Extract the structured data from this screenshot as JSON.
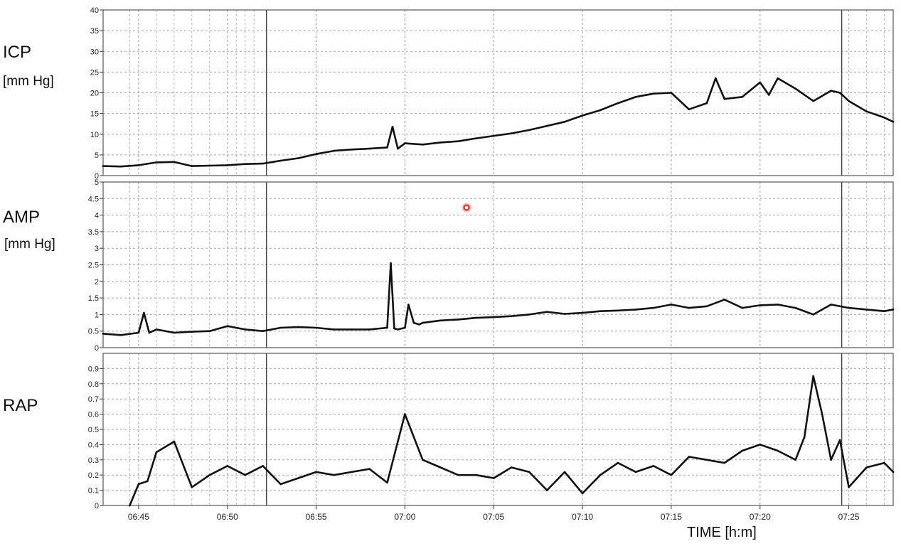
{
  "labels": {
    "icp_name": "ICP",
    "icp_unit": "[mm Hg]",
    "amp_name": "AMP",
    "amp_unit": "[mm Hg]",
    "rap_name": "RAP",
    "x_axis": "TIME [h:m]"
  },
  "chart_data": [
    {
      "type": "line",
      "title": "",
      "ylabel": "ICP [mm Hg]",
      "ylim": [
        0,
        40
      ],
      "yticks": [
        "0",
        "5",
        "10",
        "15",
        "20",
        "25",
        "30",
        "35",
        "40"
      ],
      "xlim": [
        "06:43",
        "07:27.5"
      ],
      "grid": true,
      "x": [
        "06:43",
        "06:44",
        "06:45",
        "06:46",
        "06:47",
        "06:48",
        "06:49",
        "06:50",
        "06:51",
        "06:52",
        "06:53",
        "06:54",
        "06:55",
        "06:56",
        "06:57",
        "06:58",
        "06:59",
        "06:59.3",
        "06:59.6",
        "07:00",
        "07:01",
        "07:02",
        "07:03",
        "07:04",
        "07:05",
        "07:06",
        "07:07",
        "07:08",
        "07:09",
        "07:10",
        "07:11",
        "07:12",
        "07:13",
        "07:14",
        "07:15",
        "07:16",
        "07:17",
        "07:17.5",
        "07:18",
        "07:19",
        "07:20",
        "07:20.5",
        "07:21",
        "07:22",
        "07:23",
        "07:24",
        "07:24.5",
        "07:25",
        "07:26",
        "07:27",
        "07:27.5"
      ],
      "series": [
        {
          "values": [
            2.3,
            2.2,
            2.5,
            3.2,
            3.3,
            2.3,
            2.4,
            2.5,
            2.8,
            2.9,
            3.6,
            4.2,
            5.2,
            6.0,
            6.3,
            6.5,
            6.8,
            11.8,
            6.5,
            7.8,
            7.5,
            8.0,
            8.3,
            9.0,
            9.6,
            10.2,
            11.0,
            12.0,
            13.0,
            14.5,
            15.8,
            17.5,
            19.0,
            19.8,
            20.0,
            16.0,
            17.5,
            23.5,
            18.5,
            19.0,
            22.5,
            19.5,
            23.5,
            21.0,
            18.0,
            20.5,
            20.0,
            18.0,
            15.5,
            14.0,
            13.0
          ]
        }
      ]
    },
    {
      "type": "line",
      "title": "",
      "ylabel": "AMP [mm Hg]",
      "ylim": [
        0,
        5
      ],
      "yticks": [
        "0",
        "0.5",
        "1",
        "1.5",
        "2",
        "2.5",
        "3",
        "3.5",
        "4",
        "4.5",
        "5"
      ],
      "xlim": [
        "06:43",
        "07:27.5"
      ],
      "grid": true,
      "x": [
        "06:43",
        "06:44",
        "06:45",
        "06:45.3",
        "06:45.6",
        "06:46",
        "06:47",
        "06:48",
        "06:49",
        "06:50",
        "06:51",
        "06:52",
        "06:53",
        "06:54",
        "06:55",
        "06:56",
        "06:57",
        "06:58",
        "06:59",
        "06:59.2",
        "06:59.4",
        "06:59.6",
        "07:00",
        "07:00.2",
        "07:00.5",
        "07:00.8",
        "07:01",
        "07:02",
        "07:03",
        "07:04",
        "07:05",
        "07:06",
        "07:07",
        "07:08",
        "07:09",
        "07:10",
        "07:11",
        "07:12",
        "07:13",
        "07:14",
        "07:15",
        "07:16",
        "07:17",
        "07:18",
        "07:19",
        "07:20",
        "07:21",
        "07:22",
        "07:23",
        "07:24",
        "07:25",
        "07:26",
        "07:27",
        "07:27.5"
      ],
      "series": [
        {
          "values": [
            0.42,
            0.38,
            0.45,
            1.05,
            0.45,
            0.55,
            0.45,
            0.48,
            0.5,
            0.65,
            0.55,
            0.5,
            0.6,
            0.62,
            0.6,
            0.55,
            0.55,
            0.55,
            0.6,
            2.55,
            0.58,
            0.55,
            0.6,
            1.3,
            0.75,
            0.7,
            0.75,
            0.82,
            0.85,
            0.9,
            0.92,
            0.95,
            1.0,
            1.08,
            1.02,
            1.05,
            1.1,
            1.12,
            1.15,
            1.2,
            1.3,
            1.2,
            1.25,
            1.45,
            1.2,
            1.28,
            1.3,
            1.2,
            1.0,
            1.3,
            1.2,
            1.15,
            1.1,
            1.15
          ]
        }
      ]
    },
    {
      "type": "line",
      "title": "",
      "ylabel": "RAP",
      "ylim": [
        0,
        1
      ],
      "yticks": [
        "0",
        "0.1",
        "0.2",
        "0.3",
        "0.4",
        "0.5",
        "0.6",
        "0.7",
        "0.8",
        "0.9"
      ],
      "xlim": [
        "06:43",
        "07:27.5"
      ],
      "xticks": [
        "06:45",
        "06:50",
        "06:55",
        "07:00",
        "07:05",
        "07:10",
        "07:15",
        "07:20",
        "07:25"
      ],
      "xlabel": "TIME [h:m]",
      "grid": true,
      "x": [
        "06:44.5",
        "06:45",
        "06:45.5",
        "06:46",
        "06:47",
        "06:48",
        "06:49",
        "06:50",
        "06:51",
        "06:52",
        "06:53",
        "06:54",
        "06:55",
        "06:56",
        "06:57",
        "06:58",
        "06:59",
        "07:00",
        "07:01",
        "07:02",
        "07:03",
        "07:04",
        "07:05",
        "07:06",
        "07:07",
        "07:08",
        "07:09",
        "07:10",
        "07:11",
        "07:12",
        "07:13",
        "07:14",
        "07:15",
        "07:16",
        "07:17",
        "07:18",
        "07:19",
        "07:20",
        "07:21",
        "07:22",
        "07:22.5",
        "07:23",
        "07:23.5",
        "07:24",
        "07:24.5",
        "07:25",
        "07:26",
        "07:27",
        "07:27.5"
      ],
      "series": [
        {
          "values": [
            0.0,
            0.14,
            0.16,
            0.35,
            0.42,
            0.12,
            0.2,
            0.26,
            0.2,
            0.26,
            0.14,
            0.18,
            0.22,
            0.2,
            0.22,
            0.24,
            0.15,
            0.6,
            0.3,
            0.25,
            0.2,
            0.2,
            0.18,
            0.25,
            0.22,
            0.1,
            0.22,
            0.08,
            0.2,
            0.28,
            0.22,
            0.26,
            0.2,
            0.32,
            0.3,
            0.28,
            0.36,
            0.4,
            0.36,
            0.3,
            0.45,
            0.85,
            0.6,
            0.3,
            0.43,
            0.12,
            0.25,
            0.28,
            0.22
          ]
        }
      ]
    }
  ]
}
